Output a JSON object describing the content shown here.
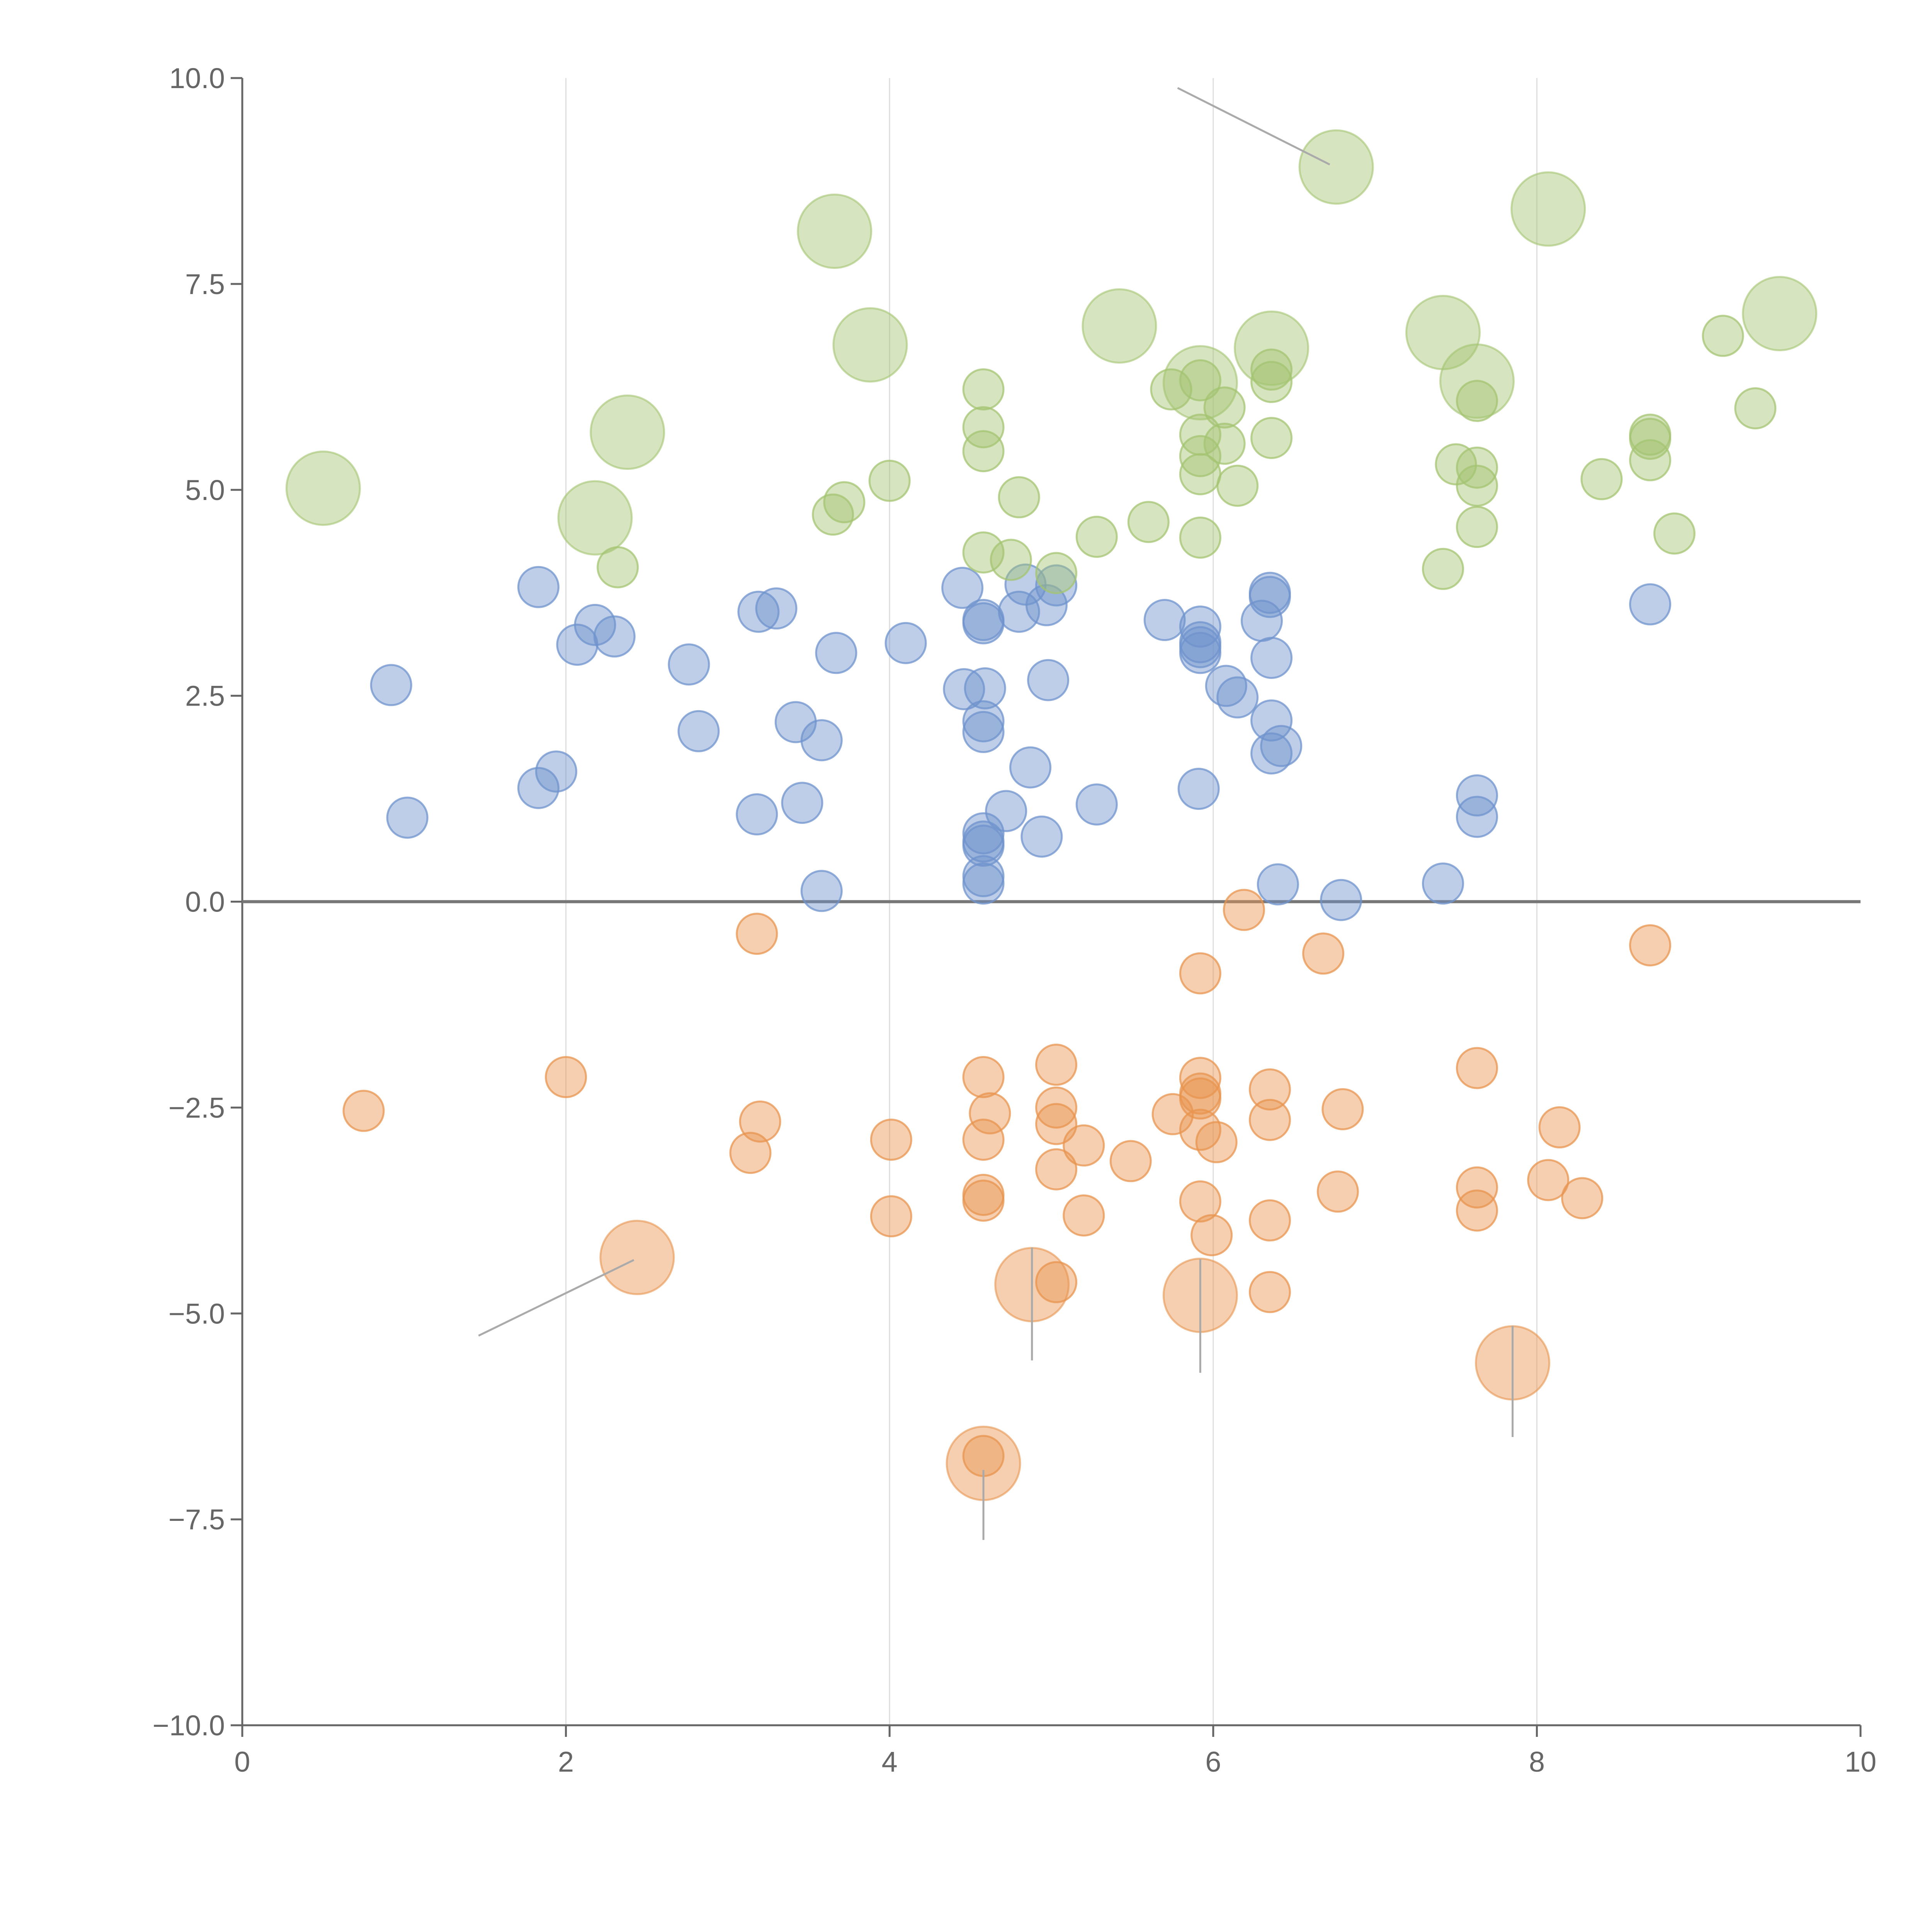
{
  "chart_data": {
    "type": "scatter",
    "title": "",
    "xlabel": "",
    "ylabel": "",
    "xlim": [
      0,
      10
    ],
    "ylim": [
      -10,
      10
    ],
    "x_ticks": [
      0,
      2,
      4,
      6,
      8,
      10
    ],
    "y_ticks": [
      -10,
      -7.5,
      -5,
      -2.5,
      0,
      2.5,
      5,
      7.5,
      10
    ],
    "x_tick_labels": [
      "0",
      "2",
      "4",
      "6",
      "8",
      "10"
    ],
    "y_tick_labels": [
      "−10.0",
      "−7.5",
      "−5.0",
      "−2.5",
      "0.0",
      "2.5",
      "5.0",
      "7.5",
      "10.0"
    ],
    "vertical_grid": true,
    "zero_line": true,
    "legend": "none",
    "colors": {
      "blue": "#6f93cd",
      "orange": "#e8944f",
      "green": "#a4c471",
      "axis": "#666666",
      "grid": "#dddddd",
      "zero": "#777777",
      "leader": "#aaaaaa"
    },
    "series": [
      {
        "color": "blue",
        "points": [
          [
            0.92,
            2.63
          ],
          [
            1.02,
            1.02
          ],
          [
            1.83,
            3.82
          ],
          [
            1.83,
            1.38
          ],
          [
            1.94,
            1.58
          ],
          [
            2.07,
            3.12
          ],
          [
            2.18,
            3.36
          ],
          [
            2.3,
            3.22
          ],
          [
            2.76,
            2.88
          ],
          [
            2.82,
            2.07
          ],
          [
            3.19,
            3.52
          ],
          [
            3.18,
            1.06
          ],
          [
            3.3,
            3.56
          ],
          [
            3.42,
            2.18
          ],
          [
            3.46,
            1.2
          ],
          [
            3.58,
            1.96
          ],
          [
            3.58,
            0.13
          ],
          [
            3.67,
            3.02
          ],
          [
            4.1,
            3.14
          ],
          [
            4.45,
            3.81
          ],
          [
            4.46,
            2.58
          ],
          [
            4.58,
            3.38
          ],
          [
            4.58,
            3.42
          ],
          [
            4.59,
            2.59
          ],
          [
            4.58,
            2.19
          ],
          [
            4.58,
            2.06
          ],
          [
            4.58,
            0.83
          ],
          [
            4.58,
            0.68
          ],
          [
            4.58,
            0.73
          ],
          [
            4.58,
            0.31
          ],
          [
            4.58,
            0.22
          ],
          [
            4.72,
            1.1
          ],
          [
            4.8,
            3.52
          ],
          [
            4.84,
            3.85
          ],
          [
            4.87,
            1.63
          ],
          [
            4.94,
            0.79
          ],
          [
            4.97,
            3.6
          ],
          [
            4.98,
            2.69
          ],
          [
            5.03,
            3.84
          ],
          [
            5.28,
            1.18
          ],
          [
            5.7,
            3.42
          ],
          [
            5.92,
            3.34
          ],
          [
            5.92,
            3.15
          ],
          [
            5.92,
            3.09
          ],
          [
            5.92,
            3.02
          ],
          [
            5.91,
            1.37
          ],
          [
            6.08,
            2.62
          ],
          [
            6.15,
            2.48
          ],
          [
            6.3,
            3.41
          ],
          [
            6.35,
            3.75
          ],
          [
            6.35,
            3.7
          ],
          [
            6.36,
            2.96
          ],
          [
            6.36,
            2.2
          ],
          [
            6.36,
            1.8
          ],
          [
            6.42,
            1.89
          ],
          [
            6.4,
            0.21
          ],
          [
            6.79,
            0.02
          ],
          [
            7.42,
            0.22
          ],
          [
            7.63,
            1.29
          ],
          [
            7.63,
            1.03
          ],
          [
            8.7,
            3.61
          ]
        ]
      },
      {
        "color": "orange",
        "points": [
          [
            0.75,
            -2.54
          ],
          [
            2.0,
            -2.13
          ],
          [
            3.18,
            -0.39
          ],
          [
            3.2,
            -2.67
          ],
          [
            3.14,
            -3.05
          ],
          [
            4.01,
            -2.89
          ],
          [
            4.01,
            -3.82
          ],
          [
            4.58,
            -2.13
          ],
          [
            4.62,
            -2.57
          ],
          [
            4.58,
            -2.89
          ],
          [
            4.58,
            -3.56
          ],
          [
            4.58,
            -3.63
          ],
          [
            4.58,
            -6.73
          ],
          [
            5.03,
            -1.98
          ],
          [
            5.03,
            -2.5
          ],
          [
            5.03,
            -2.7
          ],
          [
            5.2,
            -2.96
          ],
          [
            5.03,
            -3.25
          ],
          [
            5.2,
            -3.81
          ],
          [
            5.03,
            -4.62
          ],
          [
            5.49,
            -3.15
          ],
          [
            5.75,
            -2.58
          ],
          [
            5.92,
            -2.14
          ],
          [
            5.92,
            -2.33
          ],
          [
            5.92,
            -2.39
          ],
          [
            5.92,
            -2.77
          ],
          [
            6.02,
            -2.92
          ],
          [
            5.92,
            -3.64
          ],
          [
            5.99,
            -4.05
          ],
          [
            5.92,
            -0.87
          ],
          [
            6.19,
            -0.1
          ],
          [
            6.35,
            -2.28
          ],
          [
            6.35,
            -2.65
          ],
          [
            6.35,
            -3.87
          ],
          [
            6.35,
            -4.74
          ],
          [
            6.68,
            -0.63
          ],
          [
            6.8,
            -2.52
          ],
          [
            6.77,
            -3.52
          ],
          [
            7.63,
            -2.02
          ],
          [
            7.63,
            -3.47
          ],
          [
            7.63,
            -3.75
          ],
          [
            8.07,
            -3.38
          ],
          [
            8.14,
            -2.74
          ],
          [
            8.28,
            -3.6
          ],
          [
            8.7,
            -0.53
          ]
        ]
      },
      {
        "color": "green",
        "points": [
          [
            2.32,
            4.06
          ],
          [
            3.65,
            4.7
          ],
          [
            3.72,
            4.85
          ],
          [
            4.0,
            5.11
          ],
          [
            4.58,
            6.22
          ],
          [
            4.58,
            5.76
          ],
          [
            4.58,
            5.47
          ],
          [
            4.58,
            4.24
          ],
          [
            4.75,
            4.15
          ],
          [
            4.8,
            4.91
          ],
          [
            5.03,
            3.99
          ],
          [
            5.28,
            4.43
          ],
          [
            5.6,
            4.61
          ],
          [
            5.74,
            6.22
          ],
          [
            5.92,
            6.33
          ],
          [
            5.92,
            5.67
          ],
          [
            5.92,
            5.41
          ],
          [
            5.92,
            5.19
          ],
          [
            5.92,
            4.42
          ],
          [
            6.07,
            6.0
          ],
          [
            6.07,
            5.56
          ],
          [
            6.15,
            5.05
          ],
          [
            6.36,
            6.31
          ],
          [
            6.36,
            6.46
          ],
          [
            6.36,
            5.63
          ],
          [
            7.5,
            5.31
          ],
          [
            7.42,
            4.04
          ],
          [
            7.63,
            6.08
          ],
          [
            7.63,
            5.27
          ],
          [
            7.63,
            5.05
          ],
          [
            7.63,
            4.55
          ],
          [
            8.4,
            5.13
          ],
          [
            8.7,
            5.67
          ],
          [
            8.7,
            5.62
          ],
          [
            8.7,
            5.36
          ],
          [
            8.85,
            4.47
          ],
          [
            9.15,
            6.87
          ],
          [
            9.35,
            5.99
          ]
        ]
      }
    ],
    "large_bubbles": [
      {
        "color": "green",
        "x": 0.5,
        "y": 5.02
      },
      {
        "color": "green",
        "x": 2.18,
        "y": 4.66
      },
      {
        "color": "green",
        "x": 2.38,
        "y": 5.7
      },
      {
        "color": "green",
        "x": 3.66,
        "y": 8.14
      },
      {
        "color": "green",
        "x": 3.88,
        "y": 6.76
      },
      {
        "color": "green",
        "x": 5.42,
        "y": 6.99
      },
      {
        "color": "green",
        "x": 5.92,
        "y": 6.3
      },
      {
        "color": "green",
        "x": 6.36,
        "y": 6.72
      },
      {
        "color": "green",
        "x": 6.76,
        "y": 8.92
      },
      {
        "color": "green",
        "x": 7.42,
        "y": 6.91
      },
      {
        "color": "green",
        "x": 7.63,
        "y": 6.32
      },
      {
        "color": "green",
        "x": 8.07,
        "y": 8.41
      },
      {
        "color": "green",
        "x": 9.5,
        "y": 7.14
      },
      {
        "color": "orange",
        "x": 2.44,
        "y": -4.32
      },
      {
        "color": "orange",
        "x": 4.88,
        "y": -4.65
      },
      {
        "color": "orange",
        "x": 5.92,
        "y": -4.78
      },
      {
        "color": "orange",
        "x": 4.58,
        "y": -6.82
      },
      {
        "color": "orange",
        "x": 7.85,
        "y": -5.6
      }
    ],
    "leader_lines": [
      [
        [
          5.78,
          9.88
        ],
        [
          6.72,
          8.95
        ]
      ],
      [
        [
          2.42,
          -4.35
        ],
        [
          1.46,
          -5.27
        ]
      ],
      [
        [
          4.88,
          -4.2
        ],
        [
          4.88,
          -5.57
        ]
      ],
      [
        [
          5.92,
          -4.34
        ],
        [
          5.92,
          -5.72
        ]
      ],
      [
        [
          4.58,
          -6.9
        ],
        [
          4.58,
          -7.75
        ]
      ],
      [
        [
          7.85,
          -5.15
        ],
        [
          7.85,
          -6.5
        ]
      ]
    ]
  }
}
